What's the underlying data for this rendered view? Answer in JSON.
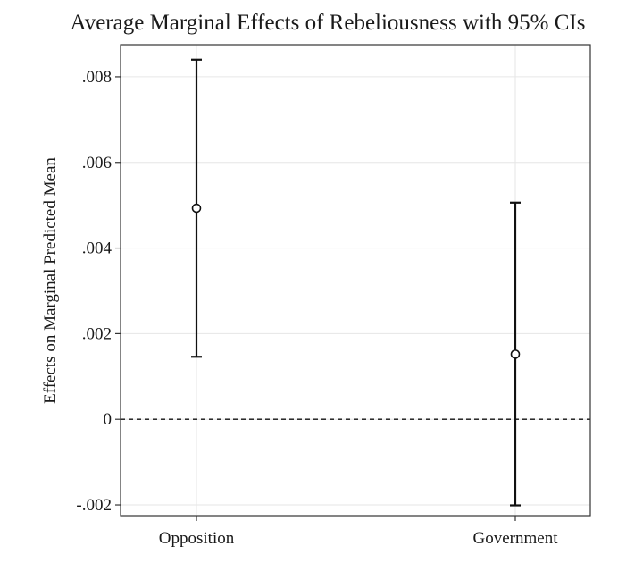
{
  "chart_data": {
    "type": "scatter",
    "title": "Average Marginal Effects of Rebeliousness with 95% CIs",
    "ylabel": "Effects on Marginal Predicted Mean",
    "xlabel": "",
    "categories": [
      "Opposition",
      "Government"
    ],
    "points": [
      {
        "category": "Opposition",
        "estimate": 0.00493,
        "ci_low": 0.00146,
        "ci_high": 0.0084
      },
      {
        "category": "Government",
        "estimate": 0.00152,
        "ci_low": -0.00201,
        "ci_high": 0.00506
      }
    ],
    "ylim": [
      -0.00225,
      0.00875
    ],
    "yticks": [
      {
        "value": 0.008,
        "label": ".008"
      },
      {
        "value": 0.006,
        "label": ".006"
      },
      {
        "value": 0.004,
        "label": ".004"
      },
      {
        "value": 0.002,
        "label": ".002"
      },
      {
        "value": 0,
        "label": "0"
      },
      {
        "value": -0.002,
        "label": "-.002"
      }
    ],
    "reference_line": {
      "y": 0,
      "style": "dashed"
    },
    "grid": true,
    "legend": "none",
    "colors": {
      "marker_fill": "#ffffff",
      "line": "#111111",
      "grid": "#e6e6e6",
      "frame": "#333333"
    }
  }
}
